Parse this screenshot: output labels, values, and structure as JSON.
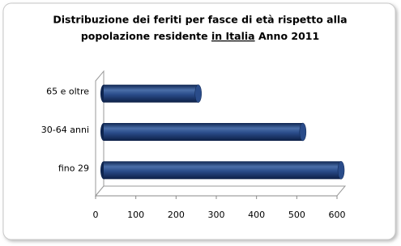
{
  "chart_data": {
    "type": "bar",
    "orientation": "horizontal",
    "title": {
      "line1": "Distribuzione dei feriti per fasce di età rispetto alla",
      "line2": [
        "popolazione residente",
        "in Italia",
        "Anno 2011"
      ]
    },
    "categories": [
      "fino 29",
      "30-64 anni",
      "65 e oltre"
    ],
    "values": [
      590,
      495,
      235
    ],
    "color": "#1f3f7a",
    "xlim": [
      0,
      600
    ],
    "xticks": [
      0,
      100,
      200,
      300,
      400,
      500,
      600
    ]
  }
}
